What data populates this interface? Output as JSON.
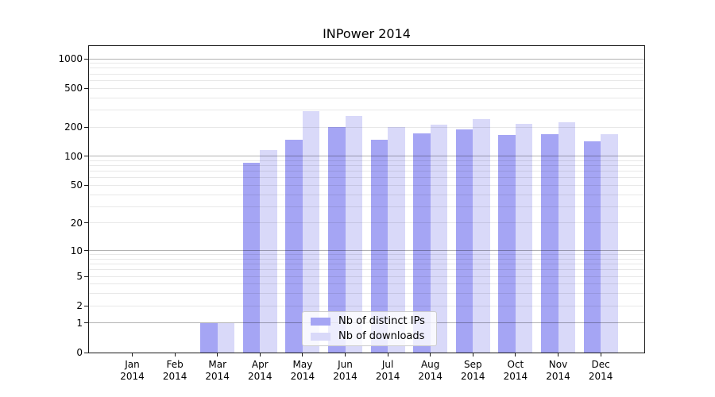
{
  "chart_data": {
    "type": "bar",
    "title": "INPower 2014",
    "categories": [
      "Jan 2014",
      "Feb 2014",
      "Mar 2014",
      "Apr 2014",
      "May 2014",
      "Jun 2014",
      "Jul 2014",
      "Aug 2014",
      "Sep 2014",
      "Oct 2014",
      "Nov 2014",
      "Dec 2014"
    ],
    "series": [
      {
        "name": "Nb of distinct IPs",
        "color": "#a5a5f4",
        "values": [
          0,
          0,
          1,
          85,
          148,
          200,
          148,
          172,
          188,
          166,
          170,
          143
        ]
      },
      {
        "name": "Nb of downloads",
        "color": "#d9d9f9",
        "values": [
          0,
          0,
          1,
          115,
          290,
          258,
          200,
          210,
          240,
          215,
          225,
          170
        ]
      }
    ],
    "y_scale": "log1p",
    "y_ticks": [
      0,
      1,
      2,
      5,
      10,
      20,
      50,
      100,
      200,
      500,
      1000
    ],
    "ylim": [
      0,
      1360
    ],
    "xlabel": "",
    "ylabel": "",
    "grid": true,
    "legend_position": "lower-center"
  },
  "colors": {
    "bar_ips": "#a5a5f4",
    "bar_downloads": "#d9d9f9",
    "grid_major": "rgba(0,0,0,0.30)",
    "grid_minor": "rgba(0,0,0,0.09)",
    "spine": "#1a1a1a",
    "text": "#000000",
    "legend_bg": "rgba(255,255,255,0.8)",
    "legend_border": "#cccccc"
  }
}
